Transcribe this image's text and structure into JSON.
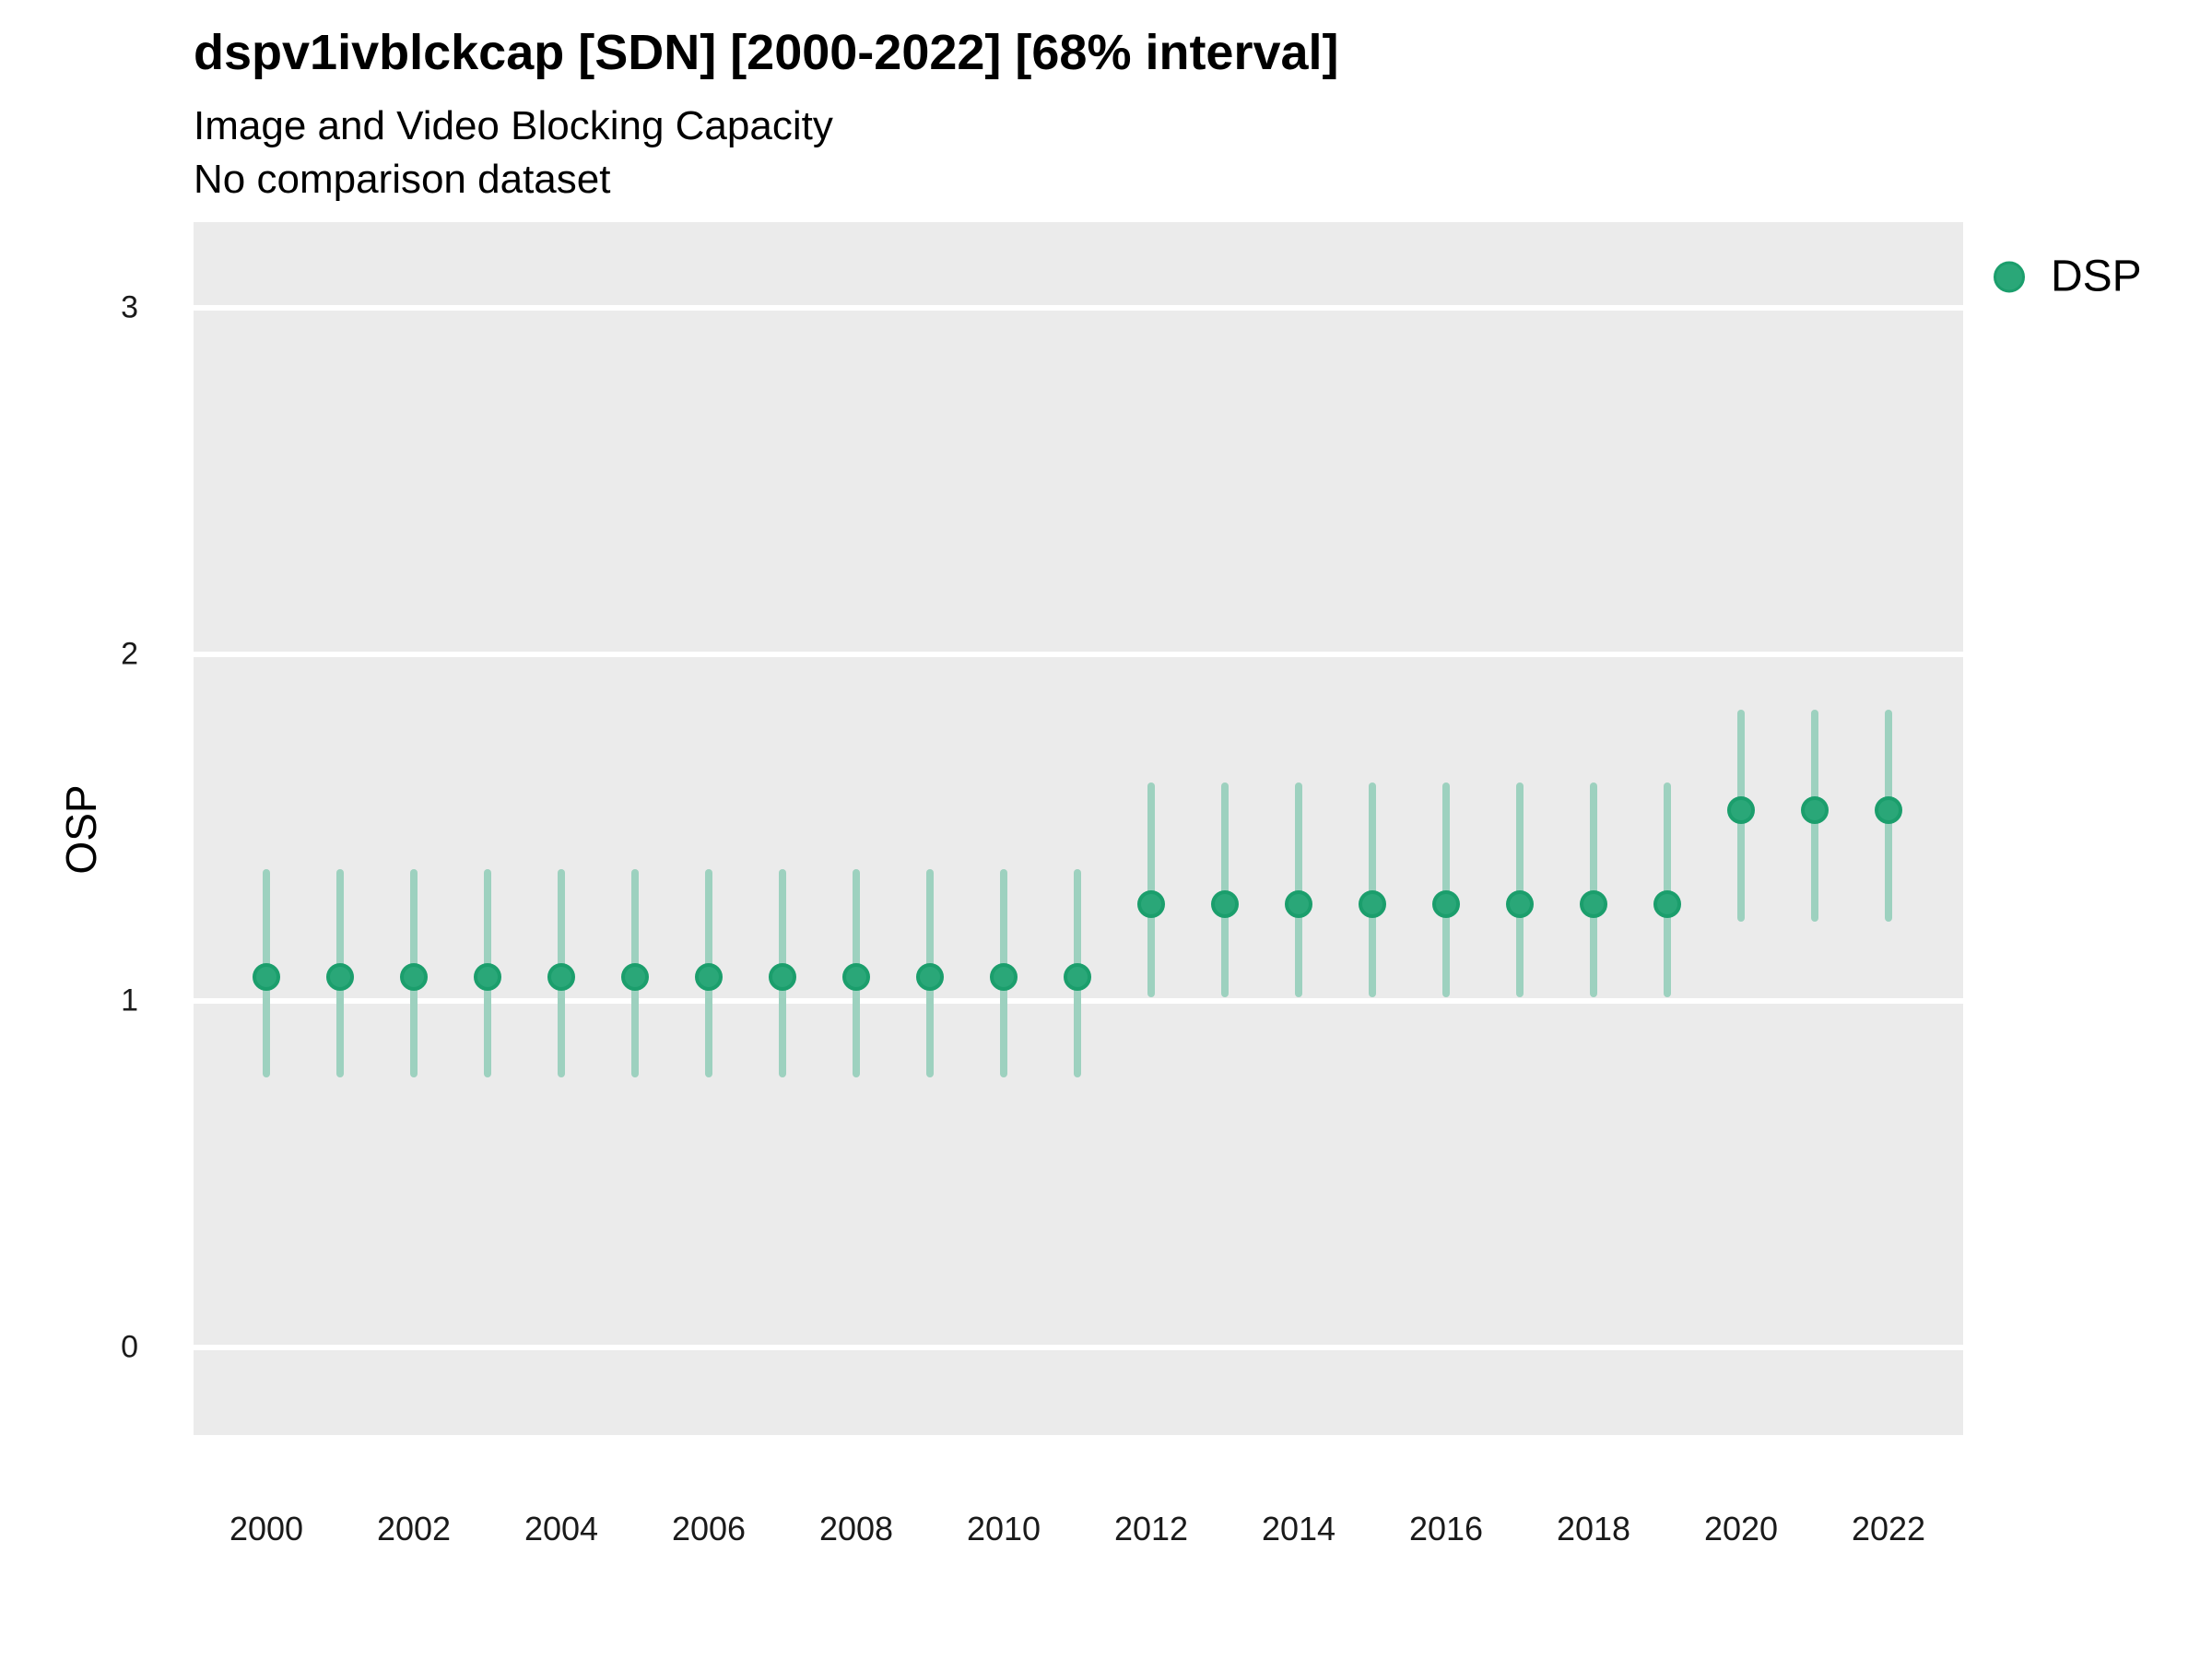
{
  "header": {
    "title": "dspv1ivblckcap [SDN] [2000-2022] [68% interval]",
    "subtitle": "Image and Video Blocking Capacity",
    "note": "No comparison dataset"
  },
  "axes": {
    "ylabel": "OSP",
    "yticks": [
      0,
      1,
      2,
      3
    ],
    "xticks": [
      2000,
      2002,
      2004,
      2006,
      2008,
      2010,
      2012,
      2014,
      2016,
      2018,
      2020,
      2022
    ]
  },
  "legend": {
    "label": "DSP"
  },
  "colors": {
    "point_fill": "#2aa778",
    "point_edge": "#1b9e6c",
    "interval_line": "#9dd1bf",
    "panel_bg": "#ebebeb",
    "gridline": "#ffffff",
    "text": "#000000"
  },
  "chart_data": {
    "type": "scatter",
    "subtype": "pointrange",
    "title": "dspv1ivblckcap [SDN] [2000-2022] [68% interval]",
    "subtitle": "Image and Video Blocking Capacity",
    "note": "No comparison dataset",
    "xlabel": "",
    "ylabel": "OSP",
    "interval": "68%",
    "ylim": [
      -0.25,
      3.25
    ],
    "xlim": [
      1999,
      2023
    ],
    "grid": "horizontal white lines on grey panel",
    "legend_position": "right-top",
    "x": [
      2000,
      2001,
      2002,
      2003,
      2004,
      2005,
      2006,
      2007,
      2008,
      2009,
      2010,
      2011,
      2012,
      2013,
      2014,
      2015,
      2016,
      2017,
      2018,
      2019,
      2020,
      2021,
      2022
    ],
    "series": [
      {
        "name": "DSP",
        "estimates": [
          1.07,
          1.07,
          1.07,
          1.07,
          1.07,
          1.07,
          1.07,
          1.07,
          1.07,
          1.07,
          1.07,
          1.07,
          1.28,
          1.28,
          1.28,
          1.28,
          1.28,
          1.28,
          1.28,
          1.28,
          1.55,
          1.55,
          1.55
        ],
        "lower": [
          0.78,
          0.78,
          0.78,
          0.78,
          0.78,
          0.78,
          0.78,
          0.78,
          0.78,
          0.78,
          0.78,
          0.78,
          1.01,
          1.01,
          1.01,
          1.01,
          1.01,
          1.01,
          1.01,
          1.01,
          1.23,
          1.23,
          1.23
        ],
        "upper": [
          1.38,
          1.38,
          1.38,
          1.38,
          1.38,
          1.38,
          1.38,
          1.38,
          1.38,
          1.38,
          1.38,
          1.38,
          1.63,
          1.63,
          1.63,
          1.63,
          1.63,
          1.63,
          1.63,
          1.63,
          1.84,
          1.84,
          1.84
        ]
      }
    ]
  }
}
